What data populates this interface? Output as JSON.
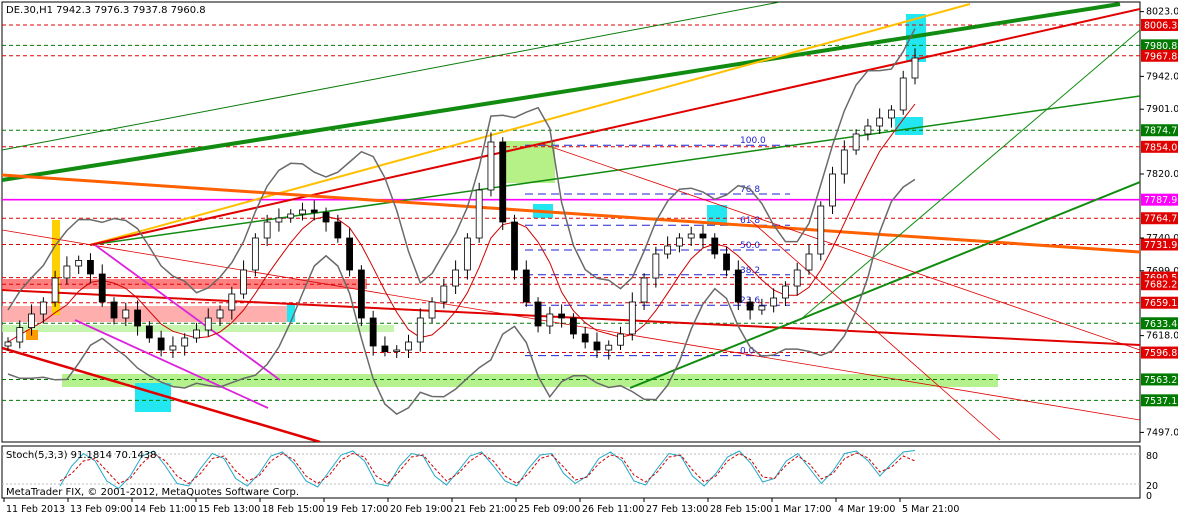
{
  "chart_data": {
    "type": "candlestick",
    "title": "DE.30,H1  7942.3 7976.3 7937.8 7960.8",
    "copyright": "MetaTrader FIX, © 2001-2012, MetaQuotes Software Corp.",
    "ylim": [
      7485,
      8035
    ],
    "y_ticks": [
      8023.0,
      7942.0,
      7901.0,
      7820.0,
      7740.0,
      7699.0,
      7618.0,
      7497.0
    ],
    "x_ticks": [
      "11 Feb 2013",
      "13 Feb 09:00",
      "14 Feb 11:00",
      "15 Feb 13:00",
      "18 Feb 15:00",
      "19 Feb 17:00",
      "20 Feb 19:00",
      "21 Feb 21:00",
      "25 Feb 09:00",
      "26 Feb 11:00",
      "27 Feb 13:00",
      "28 Feb 15:00",
      "1 Mar 17:00",
      "4 Mar 19:00",
      "5 Mar 21:00"
    ],
    "price_levels": [
      {
        "value": "8006.3",
        "color": "#e00000"
      },
      {
        "value": "7980.8",
        "color": "#007a00"
      },
      {
        "value": "7967.8",
        "color": "#e00000"
      },
      {
        "value": "7874.7",
        "color": "#007a00"
      },
      {
        "value": "7854.0",
        "color": "#e00000"
      },
      {
        "value": "7787.9",
        "color": "#ff00ff"
      },
      {
        "value": "7764.7",
        "color": "#e00000"
      },
      {
        "value": "7731.9",
        "color": "#e00000"
      },
      {
        "value": "7690.5",
        "color": "#e00000"
      },
      {
        "value": "7682.2",
        "color": "#e00000"
      },
      {
        "value": "7659.1",
        "color": "#e00000"
      },
      {
        "value": "7633.4",
        "color": "#007a00"
      },
      {
        "value": "7596.8",
        "color": "#e00000"
      },
      {
        "value": "7563.2",
        "color": "#007a00"
      },
      {
        "value": "7537.1",
        "color": "#007a00"
      }
    ],
    "fib_levels": [
      {
        "label": "100.0",
        "value": 7856
      },
      {
        "label": "76.8",
        "value": 7795
      },
      {
        "label": "61.8",
        "value": 7756
      },
      {
        "label": "50.0",
        "value": 7725
      },
      {
        "label": "38.2",
        "value": 7694
      },
      {
        "label": "23.6",
        "value": 7656
      },
      {
        "label": "0.0",
        "value": 7593
      }
    ],
    "close_series": [
      7610,
      7628,
      7645,
      7660,
      7690,
      7705,
      7712,
      7695,
      7660,
      7640,
      7650,
      7630,
      7615,
      7600,
      7605,
      7615,
      7625,
      7640,
      7650,
      7670,
      7700,
      7740,
      7760,
      7765,
      7770,
      7775,
      7772,
      7760,
      7740,
      7700,
      7640,
      7605,
      7598,
      7600,
      7610,
      7640,
      7660,
      7680,
      7700,
      7740,
      7800,
      7860,
      7760,
      7700,
      7660,
      7630,
      7645,
      7640,
      7620,
      7610,
      7600,
      7606,
      7620,
      7660,
      7690,
      7720,
      7730,
      7740,
      7745,
      7740,
      7720,
      7700,
      7660,
      7650,
      7655,
      7665,
      7680,
      7700,
      7720,
      7780,
      7820,
      7850,
      7870,
      7880,
      7890,
      7900,
      7940,
      7965
    ],
    "stochastic": {
      "label": "Stoch(5,3,3) 91.1814 70.1438",
      "ylim": [
        0,
        100
      ],
      "y_ticks": [
        "80",
        "20",
        "0"
      ],
      "main": [
        20,
        60,
        85,
        70,
        30,
        15,
        40,
        80,
        90,
        60,
        25,
        20,
        55,
        85,
        75,
        35,
        20,
        45,
        80,
        88,
        65,
        30,
        18,
        50,
        82,
        90,
        70,
        25,
        20,
        60,
        85,
        80,
        40,
        22,
        50,
        80,
        88,
        60,
        30,
        20,
        55,
        82,
        85,
        45,
        25,
        40,
        75,
        88,
        70,
        30,
        22,
        55,
        85,
        80,
        40,
        20,
        45,
        78,
        90,
        65,
        28,
        35,
        70,
        85,
        55,
        25,
        50,
        85,
        90,
        70,
        40,
        65,
        88,
        91
      ],
      "signal": [
        30,
        45,
        70,
        75,
        50,
        25,
        35,
        65,
        85,
        70,
        40,
        25,
        45,
        75,
        80,
        50,
        30,
        40,
        70,
        85,
        72,
        40,
        25,
        42,
        72,
        85,
        78,
        40,
        25,
        50,
        78,
        82,
        55,
        30,
        45,
        70,
        85,
        70,
        40,
        25,
        45,
        75,
        82,
        58,
        32,
        38,
        65,
        82,
        76,
        42,
        28,
        48,
        78,
        82,
        52,
        28,
        40,
        70,
        85,
        72,
        38,
        35,
        62,
        80,
        64,
        34,
        45,
        75,
        86,
        76,
        48,
        58,
        80,
        70
      ]
    }
  }
}
